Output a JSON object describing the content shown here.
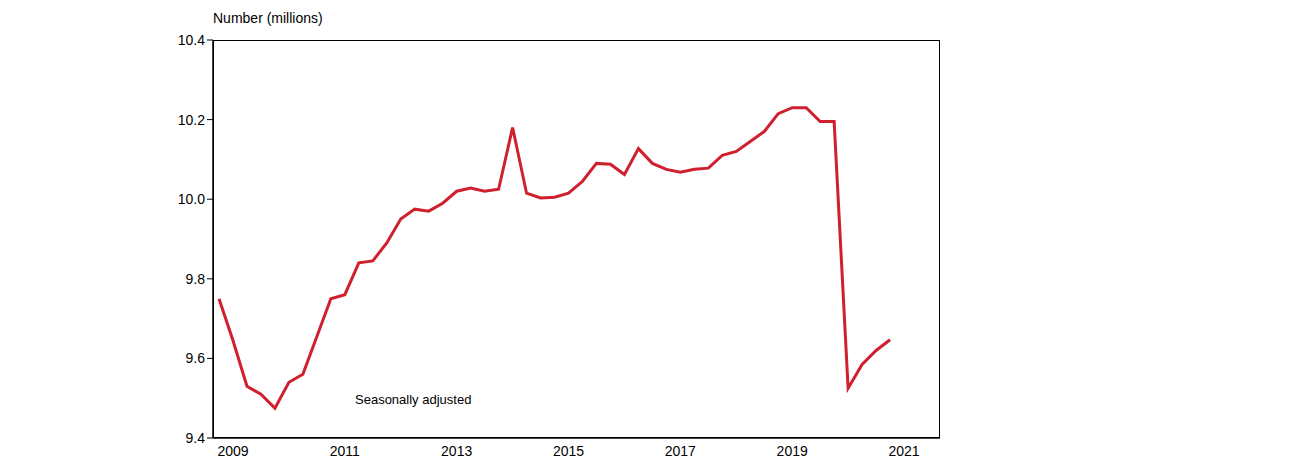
{
  "chart_data": {
    "type": "line",
    "y_label": "Number (millions)",
    "annotation": "Seasonally adjusted",
    "categories": [
      null,
      "2009",
      null,
      null,
      null,
      null,
      null,
      null,
      null,
      "2011",
      null,
      null,
      null,
      null,
      null,
      null,
      null,
      "2013",
      null,
      null,
      null,
      null,
      null,
      null,
      null,
      "2015",
      null,
      null,
      null,
      null,
      null,
      null,
      null,
      "2017",
      null,
      null,
      null,
      null,
      null,
      null,
      null,
      "2019",
      null,
      null,
      null,
      null,
      null,
      null,
      null,
      "2021",
      null,
      null
    ],
    "values": [
      9.75,
      9.645,
      9.53,
      9.51,
      9.475,
      9.54,
      9.56,
      9.655,
      9.75,
      9.76,
      9.84,
      9.845,
      9.89,
      9.95,
      9.975,
      9.97,
      9.99,
      10.02,
      10.028,
      10.02,
      10.025,
      10.18,
      10.015,
      10.003,
      10.005,
      10.015,
      10.045,
      10.09,
      10.088,
      10.062,
      10.127,
      10.09,
      10.075,
      10.068,
      10.075,
      10.078,
      10.11,
      10.12,
      10.145,
      10.17,
      10.215,
      10.23,
      10.23,
      10.195,
      10.195,
      9.525,
      9.585,
      9.62,
      9.647,
      null,
      null,
      null
    ],
    "color": "#d0202e",
    "ylim": [
      9.4,
      10.4
    ],
    "yticks": [
      9.4,
      9.6,
      9.8,
      {
        "value": 10,
        "label": "10.0"
      },
      10.2,
      10.4
    ],
    "grid": false,
    "tick_labels": true
  }
}
